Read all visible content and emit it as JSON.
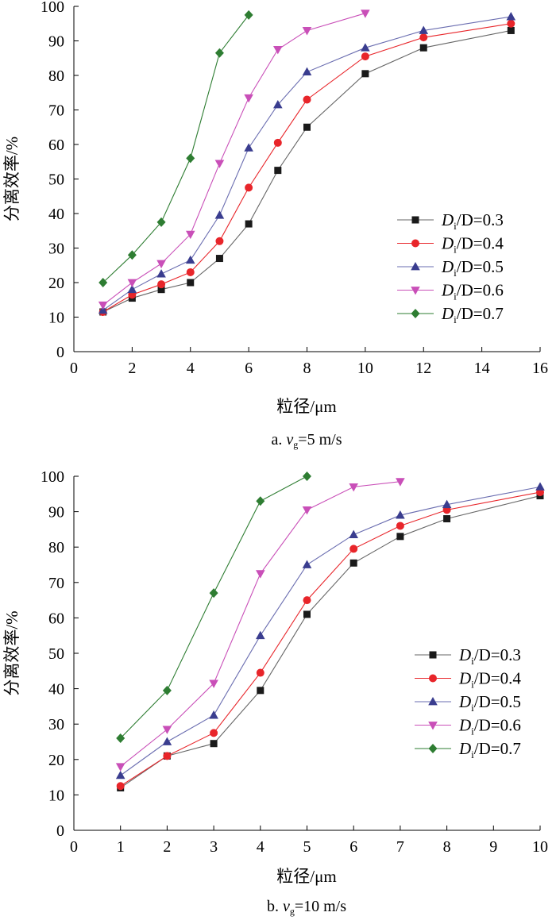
{
  "figure": {
    "charts": [
      {
        "type": "line",
        "title": "",
        "caption_prefix": "a. ",
        "caption_var": "v",
        "caption_sub": "g",
        "caption_suffix": "=5 m/s",
        "xlabel": "粒径/μm",
        "ylabel": "分离效率/%",
        "xlim": [
          0,
          16
        ],
        "ylim": [
          0,
          100
        ],
        "xticks": [
          0,
          2,
          4,
          6,
          8,
          10,
          12,
          14,
          16
        ],
        "yticks": [
          0,
          10,
          20,
          30,
          40,
          50,
          60,
          70,
          80,
          90,
          100
        ],
        "grid": false,
        "legend_position": "center-right",
        "series": [
          {
            "name": "Di/D=0.3",
            "legend_prefix": "D",
            "legend_sub": "i",
            "legend_suffix": "/D=0.3",
            "color": "#1a1a1a",
            "line_color": "#666666",
            "marker": "square",
            "x": [
              1,
              2,
              3,
              4,
              5,
              6,
              7,
              8,
              10,
              12,
              15
            ],
            "y": [
              11.5,
              15.5,
              18,
              20,
              27,
              37,
              52.5,
              65,
              80.5,
              88,
              93
            ]
          },
          {
            "name": "Di/D=0.4",
            "legend_prefix": "D",
            "legend_sub": "i",
            "legend_suffix": "/D=0.4",
            "color": "#e8252a",
            "line_color": "#e8252a",
            "marker": "circle",
            "x": [
              1,
              2,
              3,
              4,
              5,
              6,
              7,
              8,
              10,
              12,
              15
            ],
            "y": [
              11.5,
              16.5,
              19.5,
              23,
              32,
              47.5,
              60.5,
              73,
              85.5,
              91,
              95
            ]
          },
          {
            "name": "Di/D=0.5",
            "legend_prefix": "D",
            "legend_sub": "i",
            "legend_suffix": "/D=0.5",
            "color": "#3a3d8f",
            "line_color": "#6a6db0",
            "marker": "triangle-up",
            "x": [
              1,
              2,
              3,
              4,
              5,
              6,
              7,
              8,
              10,
              12,
              15
            ],
            "y": [
              12,
              18,
              22.5,
              26.5,
              39.5,
              59,
              71.5,
              81,
              88,
              93,
              97
            ]
          },
          {
            "name": "Di/D=0.6",
            "legend_prefix": "D",
            "legend_sub": "i",
            "legend_suffix": "/D=0.6",
            "color": "#c94fb8",
            "line_color": "#c94fb8",
            "marker": "triangle-down",
            "x": [
              1,
              2,
              3,
              4,
              5,
              6,
              7,
              8,
              10
            ],
            "y": [
              13.5,
              20,
              25.5,
              34,
              54.5,
              73.5,
              87.5,
              93,
              98
            ]
          },
          {
            "name": "Di/D=0.7",
            "legend_prefix": "D",
            "legend_sub": "i",
            "legend_suffix": "/D=0.7",
            "color": "#2e7d32",
            "line_color": "#2e7d32",
            "marker": "diamond",
            "x": [
              1,
              2,
              3,
              4,
              5,
              6
            ],
            "y": [
              20,
              28,
              37.5,
              56,
              86.5,
              97.5
            ]
          }
        ]
      },
      {
        "type": "line",
        "title": "",
        "caption_prefix": "b. ",
        "caption_var": "v",
        "caption_sub": "g",
        "caption_suffix": "=10 m/s",
        "xlabel": "粒径/μm",
        "ylabel": "分离效率/%",
        "xlim": [
          0,
          10
        ],
        "ylim": [
          0,
          100
        ],
        "xticks": [
          0,
          1,
          2,
          3,
          4,
          5,
          6,
          7,
          8,
          9,
          10
        ],
        "yticks": [
          0,
          10,
          20,
          30,
          40,
          50,
          60,
          70,
          80,
          90,
          100
        ],
        "grid": false,
        "legend_position": "center-right",
        "series": [
          {
            "name": "Di/D=0.3",
            "legend_prefix": "D",
            "legend_sub": "i",
            "legend_suffix": "/D=0.3",
            "color": "#1a1a1a",
            "line_color": "#666666",
            "marker": "square",
            "x": [
              1,
              2,
              3,
              4,
              5,
              6,
              7,
              8,
              10
            ],
            "y": [
              12,
              21,
              24.5,
              39.5,
              61,
              75.5,
              83,
              88,
              94.5
            ]
          },
          {
            "name": "Di/D=0.4",
            "legend_prefix": "D",
            "legend_sub": "i",
            "legend_suffix": "/D=0.4",
            "color": "#e8252a",
            "line_color": "#e8252a",
            "marker": "circle",
            "x": [
              1,
              2,
              3,
              4,
              5,
              6,
              7,
              8,
              10
            ],
            "y": [
              12.5,
              21,
              27.5,
              44.5,
              65,
              79.5,
              86,
              90.5,
              95.5
            ]
          },
          {
            "name": "Di/D=0.5",
            "legend_prefix": "D",
            "legend_sub": "i",
            "legend_suffix": "/D=0.5",
            "color": "#3a3d8f",
            "line_color": "#6a6db0",
            "marker": "triangle-up",
            "x": [
              1,
              2,
              3,
              4,
              5,
              6,
              7,
              8,
              10
            ],
            "y": [
              15.5,
              25,
              32.5,
              55,
              75,
              83.5,
              89,
              92,
              97
            ]
          },
          {
            "name": "Di/D=0.6",
            "legend_prefix": "D",
            "legend_sub": "i",
            "legend_suffix": "/D=0.6",
            "color": "#c94fb8",
            "line_color": "#c94fb8",
            "marker": "triangle-down",
            "x": [
              1,
              2,
              3,
              4,
              5,
              6,
              7
            ],
            "y": [
              18,
              28.5,
              41.5,
              72.5,
              90.5,
              97,
              98.5
            ]
          },
          {
            "name": "Di/D=0.7",
            "legend_prefix": "D",
            "legend_sub": "i",
            "legend_suffix": "/D=0.7",
            "color": "#2e7d32",
            "line_color": "#2e7d32",
            "marker": "diamond",
            "x": [
              1,
              2,
              3,
              4,
              5
            ],
            "y": [
              26,
              39.5,
              67,
              93,
              100
            ]
          }
        ]
      }
    ]
  },
  "chart_data": [
    {
      "type": "line",
      "xlabel": "粒径/μm",
      "ylabel": "分离效率/%",
      "xlim": [
        0,
        16
      ],
      "ylim": [
        0,
        100
      ],
      "caption": "a. vg=5 m/s",
      "series": [
        {
          "name": "Di/D=0.3",
          "x": [
            1,
            2,
            3,
            4,
            5,
            6,
            7,
            8,
            10,
            12,
            15
          ],
          "y": [
            11.5,
            15.5,
            18,
            20,
            27,
            37,
            52.5,
            65,
            80.5,
            88,
            93
          ]
        },
        {
          "name": "Di/D=0.4",
          "x": [
            1,
            2,
            3,
            4,
            5,
            6,
            7,
            8,
            10,
            12,
            15
          ],
          "y": [
            11.5,
            16.5,
            19.5,
            23,
            32,
            47.5,
            60.5,
            73,
            85.5,
            91,
            95
          ]
        },
        {
          "name": "Di/D=0.5",
          "x": [
            1,
            2,
            3,
            4,
            5,
            6,
            7,
            8,
            10,
            12,
            15
          ],
          "y": [
            12,
            18,
            22.5,
            26.5,
            39.5,
            59,
            71.5,
            81,
            88,
            93,
            97
          ]
        },
        {
          "name": "Di/D=0.6",
          "x": [
            1,
            2,
            3,
            4,
            5,
            6,
            7,
            8,
            10
          ],
          "y": [
            13.5,
            20,
            25.5,
            34,
            54.5,
            73.5,
            87.5,
            93,
            98
          ]
        },
        {
          "name": "Di/D=0.7",
          "x": [
            1,
            2,
            3,
            4,
            5,
            6
          ],
          "y": [
            20,
            28,
            37.5,
            56,
            86.5,
            97.5
          ]
        }
      ]
    },
    {
      "type": "line",
      "xlabel": "粒径/μm",
      "ylabel": "分离效率/%",
      "xlim": [
        0,
        10
      ],
      "ylim": [
        0,
        100
      ],
      "caption": "b. vg=10 m/s",
      "series": [
        {
          "name": "Di/D=0.3",
          "x": [
            1,
            2,
            3,
            4,
            5,
            6,
            7,
            8,
            10
          ],
          "y": [
            12,
            21,
            24.5,
            39.5,
            61,
            75.5,
            83,
            88,
            94.5
          ]
        },
        {
          "name": "Di/D=0.4",
          "x": [
            1,
            2,
            3,
            4,
            5,
            6,
            7,
            8,
            10
          ],
          "y": [
            12.5,
            21,
            27.5,
            44.5,
            65,
            79.5,
            86,
            90.5,
            95.5
          ]
        },
        {
          "name": "Di/D=0.5",
          "x": [
            1,
            2,
            3,
            4,
            5,
            6,
            7,
            8,
            10
          ],
          "y": [
            15.5,
            25,
            32.5,
            55,
            75,
            83.5,
            89,
            92,
            97
          ]
        },
        {
          "name": "Di/D=0.6",
          "x": [
            1,
            2,
            3,
            4,
            5,
            6,
            7
          ],
          "y": [
            18,
            28.5,
            41.5,
            72.5,
            90.5,
            97,
            98.5
          ]
        },
        {
          "name": "Di/D=0.7",
          "x": [
            1,
            2,
            3,
            4,
            5
          ],
          "y": [
            26,
            39.5,
            67,
            93,
            100
          ]
        }
      ]
    }
  ]
}
